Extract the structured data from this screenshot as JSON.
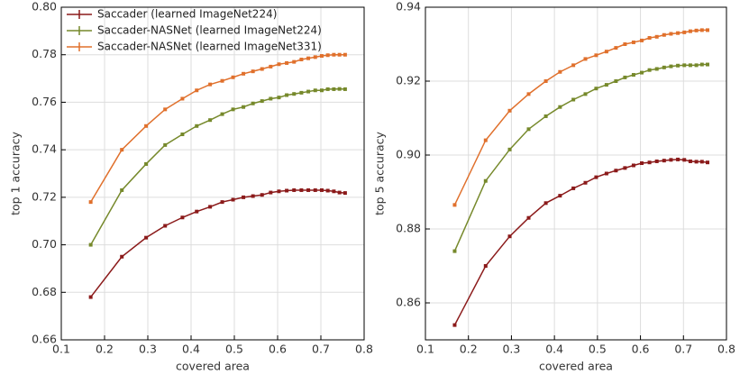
{
  "chart_data": [
    {
      "type": "line",
      "xlabel": "covered area",
      "ylabel": "top 1 accuracy",
      "x": [
        0.168,
        0.24,
        0.296,
        0.34,
        0.38,
        0.413,
        0.444,
        0.472,
        0.497,
        0.521,
        0.543,
        0.564,
        0.584,
        0.603,
        0.621,
        0.638,
        0.655,
        0.671,
        0.687,
        0.702,
        0.716,
        0.73,
        0.743,
        0.756
      ],
      "series": [
        {
          "name": "Saccader (learned ImageNet224)",
          "color": "#8b1a1a",
          "values": [
            0.678,
            0.695,
            0.703,
            0.708,
            0.7115,
            0.714,
            0.716,
            0.718,
            0.719,
            0.72,
            0.7205,
            0.721,
            0.722,
            0.7225,
            0.7228,
            0.723,
            0.723,
            0.723,
            0.723,
            0.723,
            0.7228,
            0.7225,
            0.722,
            0.7218
          ]
        },
        {
          "name": "Saccader-NASNet (learned ImageNet224)",
          "color": "#76892b",
          "values": [
            0.7,
            0.723,
            0.734,
            0.742,
            0.7465,
            0.75,
            0.7525,
            0.755,
            0.757,
            0.758,
            0.7595,
            0.7605,
            0.7615,
            0.762,
            0.763,
            0.7635,
            0.764,
            0.7645,
            0.765,
            0.765,
            0.7655,
            0.7655,
            0.7656,
            0.7655
          ]
        },
        {
          "name": "Saccader-NASNet (learned ImageNet331)",
          "color": "#e0702c",
          "values": [
            0.718,
            0.74,
            0.75,
            0.757,
            0.7615,
            0.765,
            0.7675,
            0.769,
            0.7705,
            0.772,
            0.773,
            0.774,
            0.775,
            0.776,
            0.7765,
            0.777,
            0.778,
            0.7785,
            0.779,
            0.7795,
            0.7798,
            0.78,
            0.78,
            0.78
          ]
        }
      ],
      "xlim": [
        0.1,
        0.8
      ],
      "xticks": [
        0.1,
        0.2,
        0.3,
        0.4,
        0.5,
        0.6,
        0.7,
        0.8
      ],
      "ylim": [
        0.66,
        0.8
      ],
      "yticks": [
        0.66,
        0.68,
        {
          "value": 0.7,
          "label": "0.70"
        },
        0.72,
        0.74,
        0.76,
        0.78,
        {
          "value": 0.8,
          "label": "0.80"
        }
      ],
      "grid": true,
      "legend": "upper left"
    },
    {
      "type": "line",
      "xlabel": "covered area",
      "ylabel": "top 5 accuracy",
      "x": [
        0.168,
        0.24,
        0.296,
        0.34,
        0.38,
        0.413,
        0.444,
        0.472,
        0.497,
        0.521,
        0.543,
        0.564,
        0.584,
        0.603,
        0.621,
        0.638,
        0.655,
        0.671,
        0.687,
        0.702,
        0.716,
        0.73,
        0.743,
        0.756
      ],
      "series": [
        {
          "color": "#8b1a1a",
          "values": [
            0.854,
            0.87,
            0.878,
            0.883,
            0.887,
            0.889,
            0.891,
            0.8925,
            0.894,
            0.895,
            0.8958,
            0.8965,
            0.8972,
            0.8978,
            0.898,
            0.8983,
            0.8985,
            0.8987,
            0.8988,
            0.8987,
            0.8983,
            0.8982,
            0.8982,
            0.898
          ]
        },
        {
          "color": "#76892b",
          "values": [
            0.874,
            0.893,
            0.9015,
            0.907,
            0.9105,
            0.913,
            0.915,
            0.9165,
            0.918,
            0.919,
            0.92,
            0.921,
            0.9217,
            0.9223,
            0.923,
            0.9233,
            0.9237,
            0.924,
            0.9242,
            0.9243,
            0.9243,
            0.9243,
            0.9245,
            0.9245
          ]
        },
        {
          "color": "#e0702c",
          "values": [
            0.8865,
            0.904,
            0.912,
            0.9165,
            0.92,
            0.9225,
            0.9243,
            0.926,
            0.927,
            0.928,
            0.929,
            0.93,
            0.9305,
            0.931,
            0.9317,
            0.932,
            0.9325,
            0.9328,
            0.933,
            0.9332,
            0.9335,
            0.9337,
            0.9338,
            0.9338
          ]
        }
      ],
      "xlim": [
        0.1,
        0.8
      ],
      "xticks": [
        0.1,
        0.2,
        0.3,
        0.4,
        0.5,
        0.6,
        0.7,
        0.8
      ],
      "ylim": [
        0.85,
        0.94
      ],
      "yticks": [
        0.86,
        0.88,
        {
          "value": 0.9,
          "label": "0.90"
        },
        0.92,
        0.94
      ],
      "grid": true
    }
  ]
}
